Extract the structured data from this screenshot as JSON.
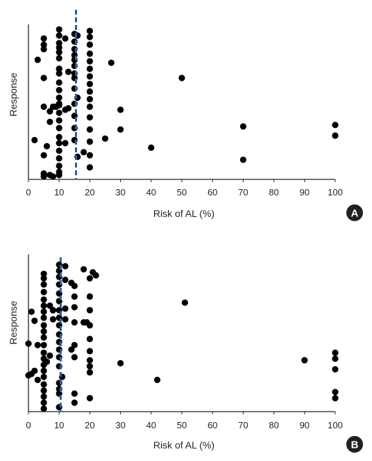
{
  "colors": {
    "point": "#000000",
    "threshold": "#2a5caa",
    "axis": "#231f20",
    "badge": "#231f20"
  },
  "chart_data": [
    {
      "type": "scatter",
      "panel": "A",
      "xlabel": "Risk of AL (%)",
      "ylabel": "Response",
      "xlim": [
        0,
        100
      ],
      "xticks": [
        0,
        10,
        20,
        30,
        40,
        50,
        60,
        70,
        80,
        90,
        100
      ],
      "threshold_x": 15.5,
      "threshold_style": "dashed",
      "x": [
        5,
        5,
        5,
        10,
        10,
        10,
        10,
        10,
        10,
        10,
        10,
        10,
        10,
        10,
        10,
        10,
        10,
        10,
        10,
        10,
        10,
        10,
        10,
        10,
        15,
        15,
        15,
        15,
        15,
        15,
        15,
        15,
        15,
        15,
        15,
        15,
        20,
        20,
        20,
        20,
        20,
        20,
        20,
        20,
        20,
        20,
        20,
        20,
        20,
        20,
        20,
        20,
        12,
        16,
        3,
        13,
        15,
        5,
        8,
        5,
        7,
        7,
        6,
        12,
        2,
        5,
        16,
        18,
        25,
        27,
        30,
        30,
        40,
        50,
        70,
        70,
        100,
        100,
        5,
        8,
        5,
        7,
        12,
        10,
        16,
        13,
        10,
        9,
        10
      ],
      "y": [
        0.92,
        0.88,
        0.85,
        0.94,
        0.89,
        0.86,
        0.83,
        0.79,
        0.72,
        0.69,
        0.63,
        0.58,
        0.53,
        0.48,
        0.43,
        0.38,
        0.33,
        0.27,
        0.23,
        0.18,
        0.13,
        0.08,
        0.04,
        0.02,
        0.95,
        0.9,
        0.85,
        0.81,
        0.78,
        0.74,
        0.69,
        0.59,
        0.49,
        0.41,
        0.33,
        0.25,
        0.97,
        0.93,
        0.88,
        0.82,
        0.77,
        0.72,
        0.67,
        0.62,
        0.57,
        0.52,
        0.47,
        0.4,
        0.32,
        0.24,
        0.15,
        0.07,
        0.92,
        0.94,
        0.78,
        0.7,
        0.66,
        0.66,
        0.47,
        0.47,
        0.44,
        0.37,
        0.21,
        0.23,
        0.25,
        0.15,
        0.14,
        0.17,
        0.26,
        0.76,
        0.45,
        0.32,
        0.2,
        0.66,
        0.34,
        0.12,
        0.35,
        0.28,
        0.03,
        0.01,
        0.01,
        0.02,
        0.45,
        0.49,
        0.53,
        0.46,
        0.72,
        0.47,
        0.98
      ]
    },
    {
      "type": "scatter",
      "panel": "B",
      "xlabel": "Risk of AL (%)",
      "ylabel": "Response",
      "xlim": [
        0,
        100
      ],
      "xticks": [
        0,
        10,
        20,
        30,
        40,
        50,
        60,
        70,
        80,
        90,
        100
      ],
      "threshold_x": 10.5,
      "threshold_style": "dashed",
      "x": [
        5,
        5,
        5,
        5,
        5,
        5,
        5,
        5,
        5,
        5,
        5,
        5,
        5,
        5,
        5,
        5,
        5,
        5,
        5,
        5,
        5,
        5,
        10,
        10,
        10,
        10,
        10,
        10,
        10,
        10,
        10,
        10,
        10,
        10,
        10,
        10,
        10,
        10,
        10,
        10,
        15,
        15,
        15,
        15,
        15,
        15,
        15,
        15,
        20,
        20,
        20,
        20,
        20,
        20,
        20,
        20,
        20,
        20,
        12,
        12,
        12,
        12,
        14,
        18,
        18,
        19,
        21,
        22,
        1,
        2,
        0,
        0,
        2,
        1,
        3,
        3,
        8,
        7,
        6,
        7,
        8,
        8,
        11,
        14,
        30,
        42,
        51,
        90,
        100,
        100,
        100,
        100,
        100
      ],
      "y": [
        0.9,
        0.87,
        0.83,
        0.78,
        0.73,
        0.69,
        0.65,
        0.61,
        0.56,
        0.52,
        0.48,
        0.43,
        0.38,
        0.34,
        0.3,
        0.26,
        0.22,
        0.17,
        0.13,
        0.09,
        0.05,
        0.01,
        0.96,
        0.92,
        0.88,
        0.83,
        0.77,
        0.72,
        0.66,
        0.61,
        0.56,
        0.5,
        0.45,
        0.4,
        0.35,
        0.29,
        0.18,
        0.14,
        0.11,
        0.02,
        0.82,
        0.75,
        0.68,
        0.58,
        0.43,
        0.35,
        0.11,
        0.05,
        0.87,
        0.75,
        0.66,
        0.56,
        0.47,
        0.39,
        0.33,
        0.29,
        0.25,
        0.08,
        0.95,
        0.86,
        0.67,
        0.6,
        0.84,
        0.93,
        0.58,
        0.58,
        0.91,
        0.89,
        0.65,
        0.59,
        0.44,
        0.23,
        0.26,
        0.24,
        0.43,
        0.2,
        0.66,
        0.69,
        0.32,
        0.36,
        0.66,
        0.6,
        0.22,
        0.4,
        0.31,
        0.2,
        0.71,
        0.33,
        0.38,
        0.34,
        0.27,
        0.12,
        0.08
      ]
    }
  ]
}
